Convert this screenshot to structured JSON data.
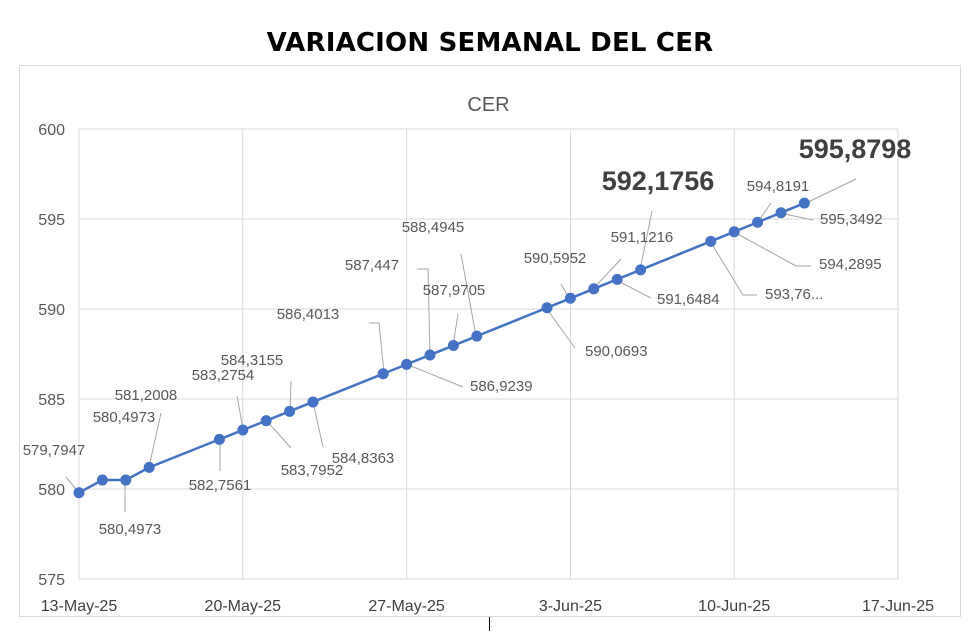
{
  "page_title": "VARIACION SEMANAL DEL CER",
  "colors": {
    "series": "#4472c4",
    "grid": "#d9d9d9",
    "text": "#595959",
    "leader": "#a6a6a6",
    "highlight_label": "#404040"
  },
  "chart_data": {
    "type": "line",
    "title": "CER",
    "xlabel": "",
    "ylabel": "",
    "ylim": [
      575,
      600
    ],
    "yticks": [
      575,
      580,
      585,
      590,
      595,
      600
    ],
    "xlim": [
      "2025-05-13",
      "2025-06-17"
    ],
    "xticks": [
      "2025-05-13",
      "2025-05-20",
      "2025-05-27",
      "2025-06-03",
      "2025-06-10",
      "2025-06-17"
    ],
    "xtick_labels": [
      "13-May-25",
      "20-May-25",
      "27-May-25",
      "3-Jun-25",
      "10-Jun-25",
      "17-Jun-25"
    ],
    "grid": true,
    "legend": "none",
    "series": [
      {
        "points": [
          {
            "x": "2025-05-13",
            "y": 579.7947,
            "label": "579,7947"
          },
          {
            "x": "2025-05-14",
            "y": 580.4973,
            "label": "580,4973"
          },
          {
            "x": "2025-05-15",
            "y": 580.4973,
            "label": "580,4973"
          },
          {
            "x": "2025-05-16",
            "y": 581.2008,
            "label": "581,2008"
          },
          {
            "x": "2025-05-19",
            "y": 582.7561,
            "label": "582,7561"
          },
          {
            "x": "2025-05-20",
            "y": 583.2754,
            "label": "583,2754"
          },
          {
            "x": "2025-05-21",
            "y": 583.7952,
            "label": "583,7952"
          },
          {
            "x": "2025-05-22",
            "y": 584.3155,
            "label": "584,3155"
          },
          {
            "x": "2025-05-23",
            "y": 584.8363,
            "label": "584,8363"
          },
          {
            "x": "2025-05-26",
            "y": 586.4013,
            "label": "586,4013"
          },
          {
            "x": "2025-05-27",
            "y": 586.9239,
            "label": "586,9239"
          },
          {
            "x": "2025-05-28",
            "y": 587.447,
            "label": "587,447"
          },
          {
            "x": "2025-05-29",
            "y": 587.9705,
            "label": "587,9705"
          },
          {
            "x": "2025-05-30",
            "y": 588.4945,
            "label": "588,4945"
          },
          {
            "x": "2025-06-02",
            "y": 590.0693,
            "label": "590,0693"
          },
          {
            "x": "2025-06-03",
            "y": 590.5952,
            "label": "590,5952"
          },
          {
            "x": "2025-06-04",
            "y": 591.1216,
            "label": "591,1216"
          },
          {
            "x": "2025-06-05",
            "y": 591.6484,
            "label": "591,6484"
          },
          {
            "x": "2025-06-06",
            "y": 592.1756,
            "label": "592,1756"
          },
          {
            "x": "2025-06-09",
            "y": 593.76,
            "label": "593,76..."
          },
          {
            "x": "2025-06-10",
            "y": 594.2895,
            "label": "594,2895"
          },
          {
            "x": "2025-06-11",
            "y": 594.8191,
            "label": "594,8191"
          },
          {
            "x": "2025-06-12",
            "y": 595.3492,
            "label": "595,3492"
          },
          {
            "x": "2025-06-13",
            "y": 595.8798,
            "label": "595,8798"
          }
        ]
      }
    ]
  }
}
